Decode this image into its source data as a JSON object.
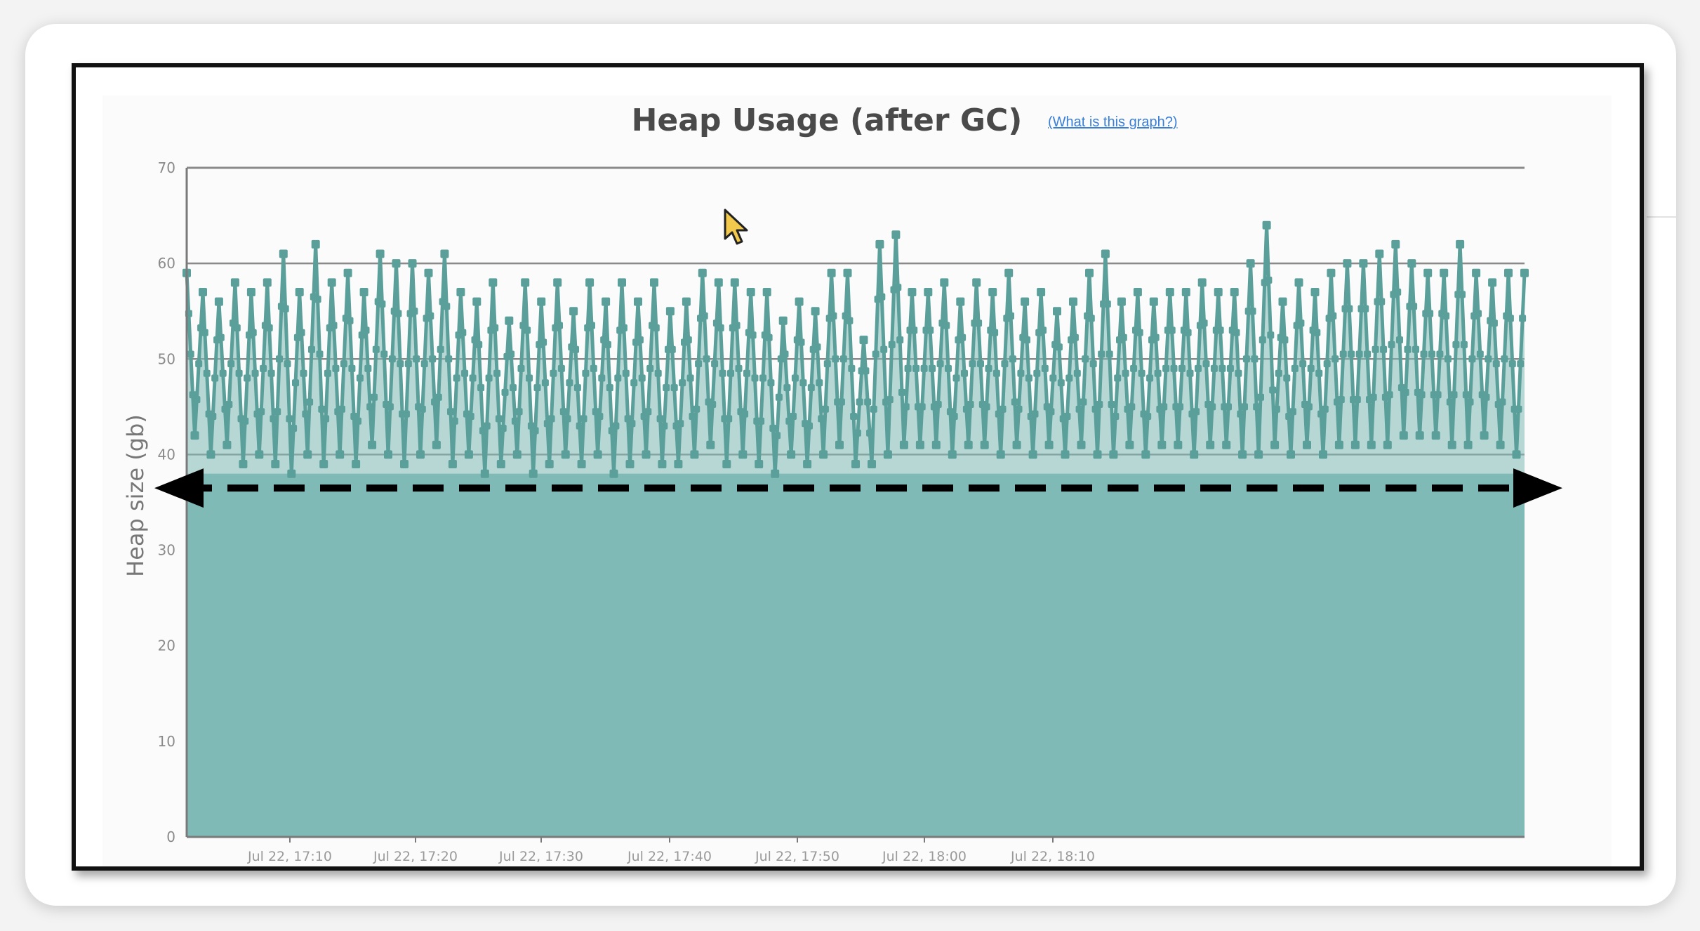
{
  "chart_data": {
    "type": "area",
    "title": "Heap Usage (after GC)",
    "help_link": "(What is this graph?)",
    "ylabel": "Heap size (gb)",
    "xlabel": "",
    "ylim": [
      0,
      70
    ],
    "yticks": [
      "0",
      "10",
      "20",
      "30",
      "40",
      "50",
      "60",
      "70"
    ],
    "xtick_labels": [
      "Jul 22, 17:10",
      "Jul 22, 17:20",
      "Jul 22, 17:30",
      "Jul 22, 17:40",
      "Jul 22, 17:50",
      "Jul 22, 18:00",
      "Jul 22, 18:10"
    ],
    "x_range_minutes": [
      "17:04",
      "18:12"
    ],
    "grid": true,
    "legend": "none",
    "peaks": [
      59,
      57,
      56,
      58,
      57,
      58,
      61,
      57,
      62,
      58,
      59,
      57,
      61,
      60,
      60,
      59,
      61,
      57,
      56,
      58,
      54,
      58,
      56,
      58,
      55,
      58,
      56,
      58,
      56,
      58,
      55,
      56,
      59,
      58,
      58,
      57,
      57,
      54,
      56,
      55,
      59,
      59,
      52,
      62,
      63,
      57,
      57,
      58,
      56,
      58,
      57,
      59,
      56,
      57,
      55,
      56,
      59,
      61,
      56,
      57,
      56,
      57,
      57,
      58,
      57,
      57,
      60,
      64,
      56,
      58,
      57,
      59,
      60,
      60,
      61,
      62,
      60,
      59,
      59,
      62,
      59,
      58,
      59
    ],
    "troughs": [
      42,
      40,
      41,
      39,
      40,
      39,
      38,
      40,
      39,
      40,
      39,
      41,
      40,
      39,
      40,
      41,
      39,
      40,
      38,
      39,
      40,
      38,
      39,
      40,
      39,
      40,
      38,
      39,
      40,
      39,
      39,
      40,
      41,
      39,
      40,
      39,
      38,
      40,
      39,
      40,
      41,
      39,
      39,
      40,
      41,
      41,
      41,
      40,
      41,
      41,
      40,
      41,
      40,
      41,
      40,
      41,
      40,
      40,
      41,
      40,
      41,
      41,
      40,
      41,
      41,
      40,
      40,
      41,
      40,
      41,
      40,
      41,
      41,
      41,
      41,
      42,
      42,
      42,
      41,
      41,
      42,
      41,
      40
    ],
    "baseline_arrow_value": 36.5,
    "colors": {
      "area": "#7fbab7",
      "line": "#5a9f9a",
      "grid_upper": "#8a8a8a",
      "grid_lower": "#5f9794",
      "link": "#3a7fd6",
      "arrow": "#000000"
    }
  }
}
